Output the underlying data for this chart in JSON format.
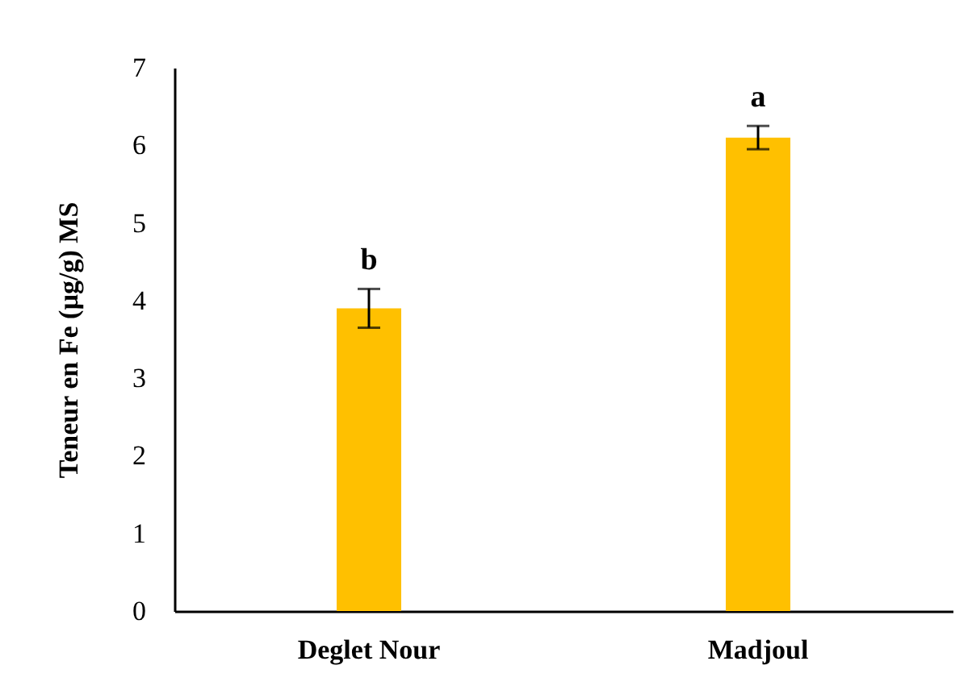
{
  "chart_data": {
    "type": "bar",
    "ylabel": "Teneur en Fe (µg/g) MS",
    "categories": [
      "Deglet Nour",
      "Madjoul"
    ],
    "values": [
      3.9,
      6.1
    ],
    "color": "#ffc000",
    "errors": [
      0.25,
      0.15
    ],
    "ylim": [
      0,
      7
    ],
    "yticks": [
      0,
      1,
      2,
      3,
      4,
      5,
      6,
      7
    ],
    "annotations": [
      {
        "text": "b",
        "x": "Deglet Nour",
        "y": 3.9
      },
      {
        "text": "a",
        "x": "Madjoul",
        "y": 6.1
      }
    ]
  }
}
